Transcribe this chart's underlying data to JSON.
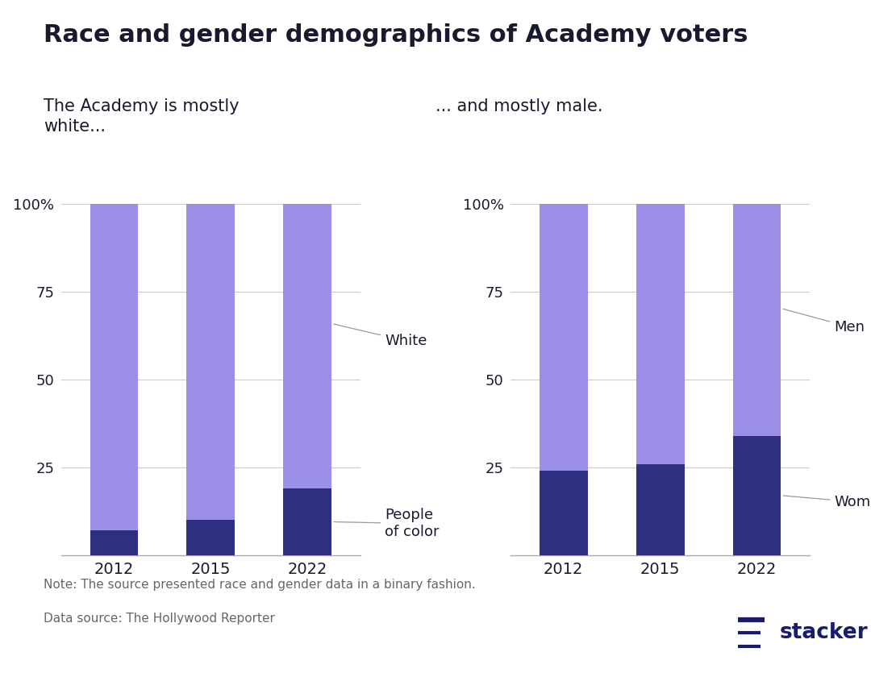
{
  "title": "Race and gender demographics of Academy voters",
  "subtitle_left": "The Academy is mostly\nwhite...",
  "subtitle_right": "... and mostly male.",
  "years": [
    "2012",
    "2015",
    "2022"
  ],
  "race_poc": [
    7,
    10,
    19
  ],
  "race_white": [
    93,
    90,
    81
  ],
  "gender_women": [
    24,
    26,
    34
  ],
  "gender_men": [
    76,
    74,
    66
  ],
  "color_dark": "#2d3080",
  "color_light": "#9b8fe8",
  "note": "Note: The source presented race and gender data in a binary fashion.",
  "source": "Data source: The Hollywood Reporter",
  "label_white": "White",
  "label_poc": "People\nof color",
  "label_men": "Men",
  "label_women": "Women",
  "bar_width": 0.5,
  "yticks": [
    25,
    50,
    75,
    100
  ],
  "ylim": [
    0,
    108
  ],
  "background_color": "#ffffff",
  "text_color": "#1a1a2e",
  "stacker_color": "#1a1a6e",
  "note_color": "#666666"
}
